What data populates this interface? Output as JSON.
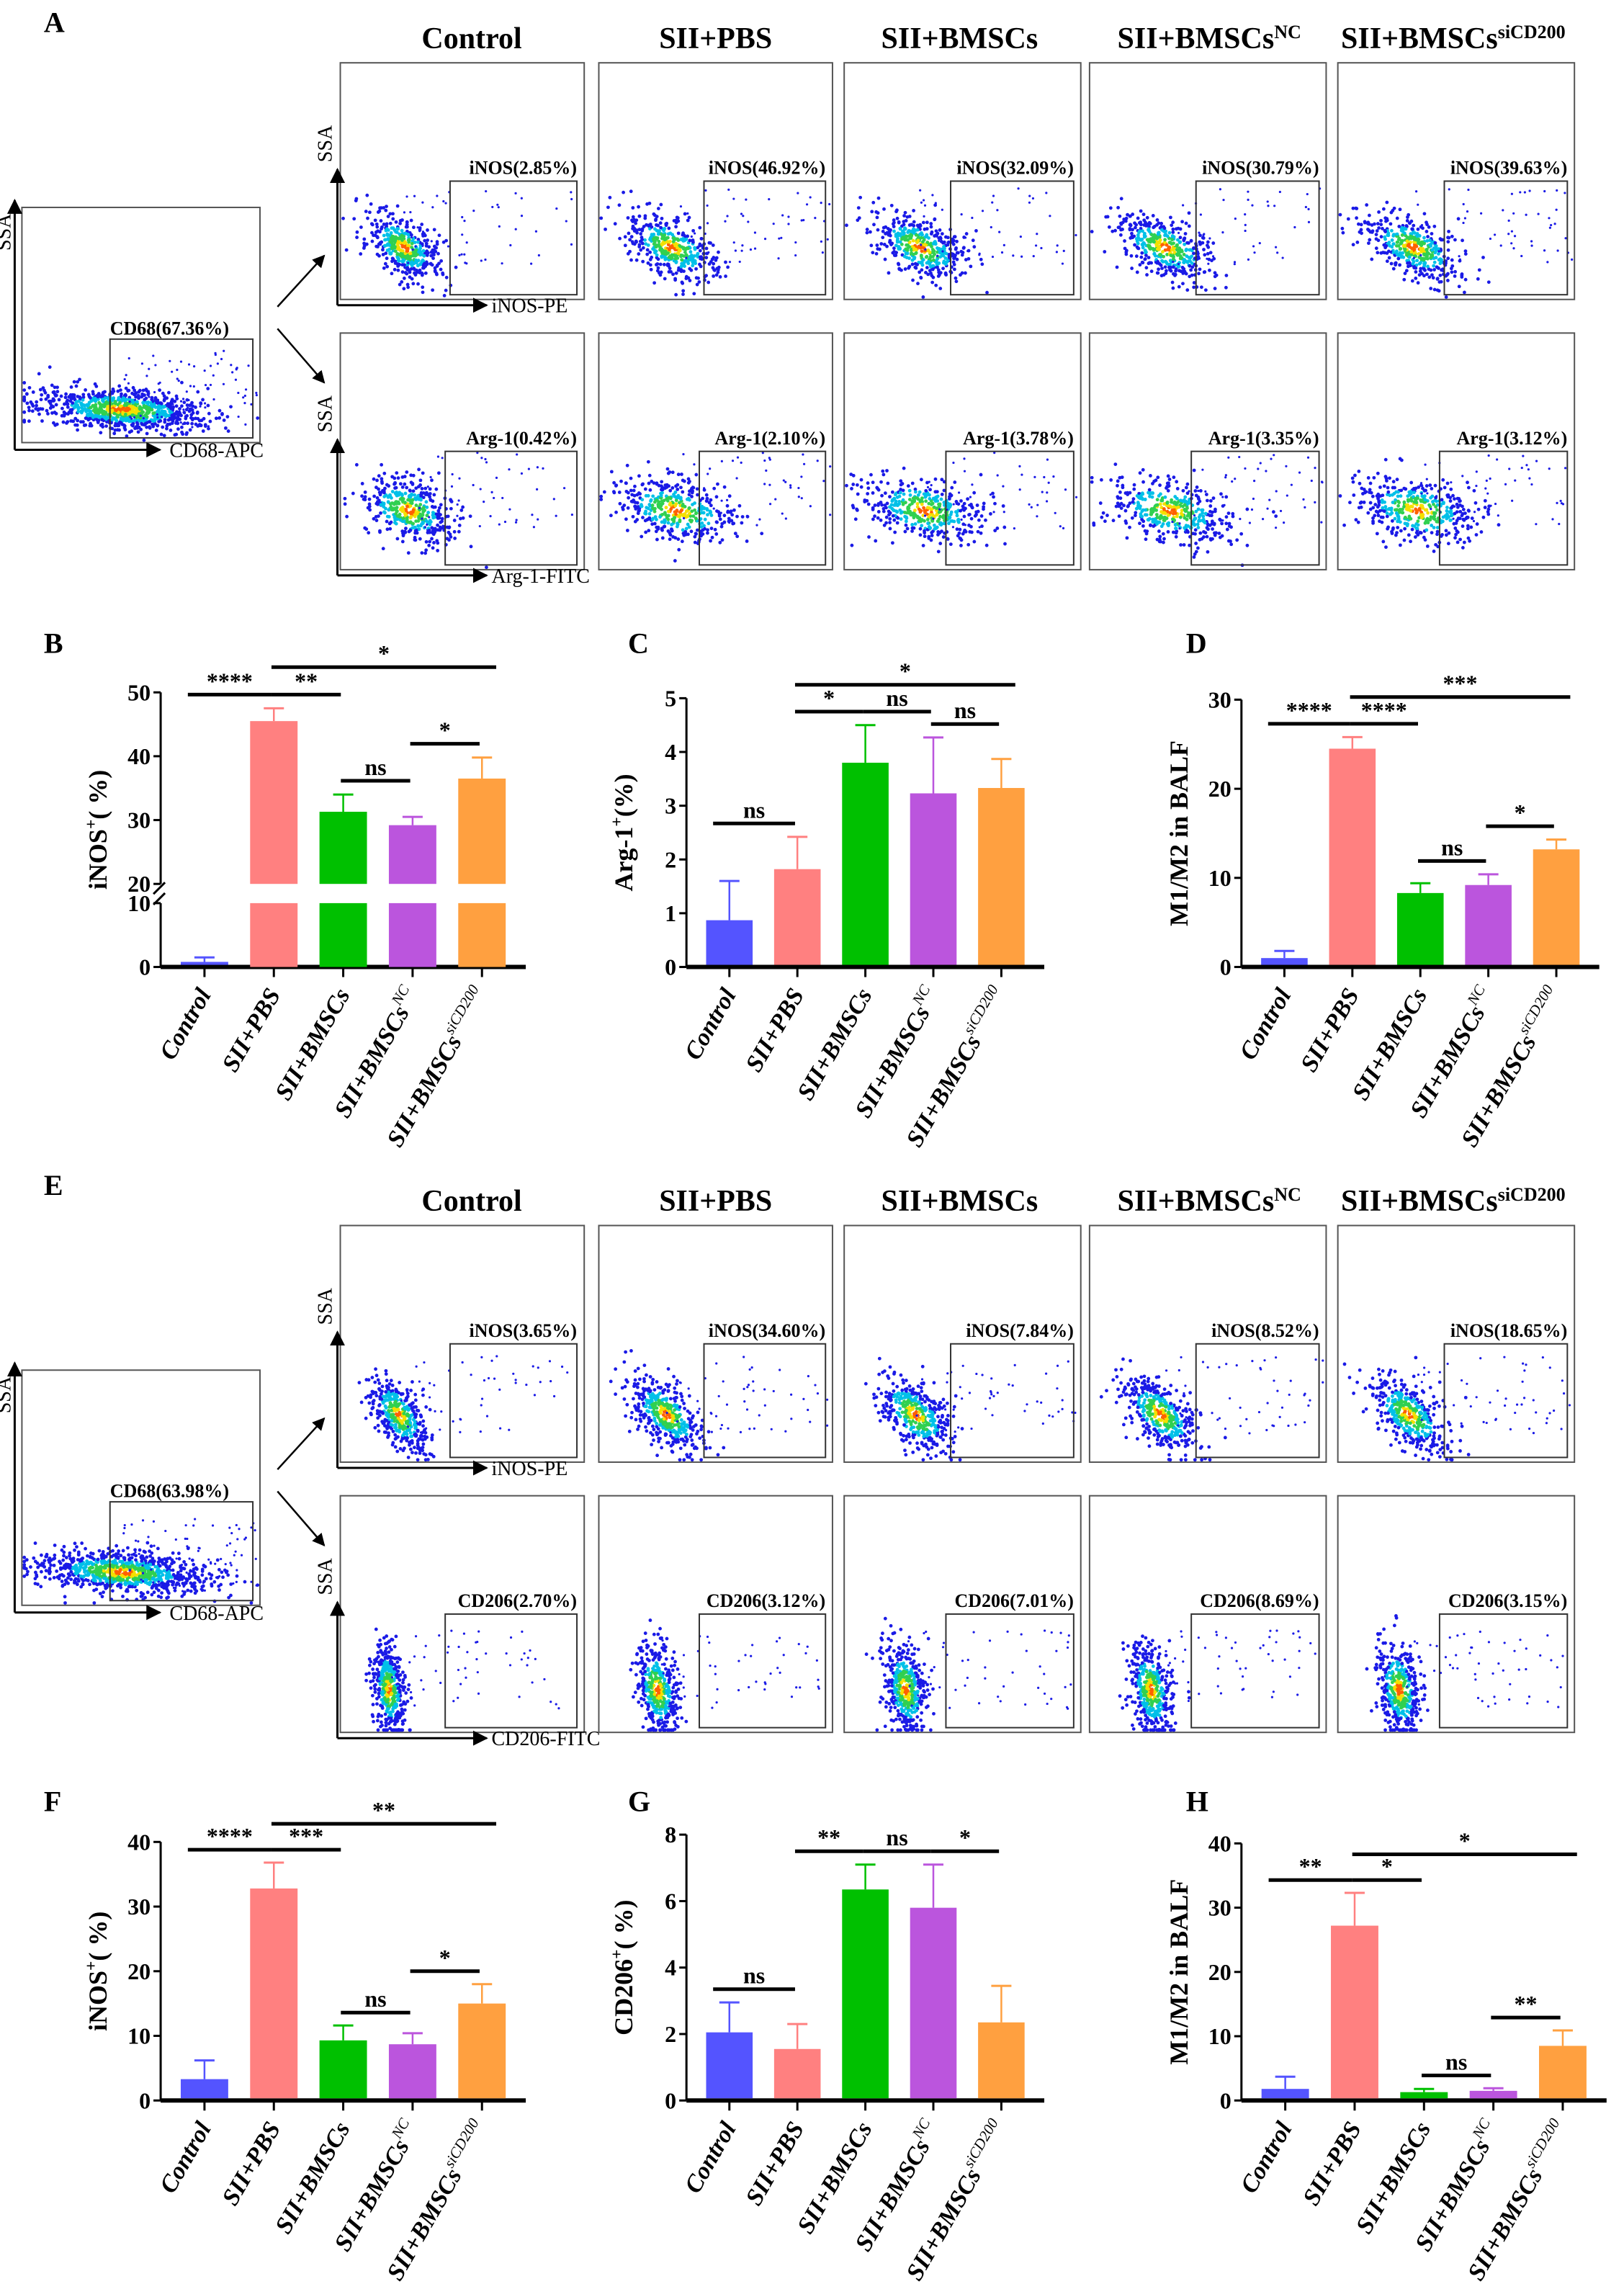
{
  "groups": [
    {
      "main": "Control",
      "sup": ""
    },
    {
      "main": "SII+PBS",
      "sup": ""
    },
    {
      "main": "SII+BMSCs",
      "sup": ""
    },
    {
      "main": "SII+BMSCs",
      "sup": "NC"
    },
    {
      "main": "SII+BMSCs",
      "sup": "siCD200"
    }
  ],
  "flow_sections": [
    {
      "letter": "A",
      "gate_panel": {
        "label": "CD68(67.36%)",
        "x_axis": "CD68-APC",
        "y_axis": "SSA"
      },
      "rows": [
        {
          "x_axis": "iNOS-PE",
          "y_axis": "SSA",
          "gates": [
            "iNOS(2.85%)",
            "iNOS(46.92%)",
            "iNOS(32.09%)",
            "iNOS(30.79%)",
            "iNOS(39.63%)"
          ]
        },
        {
          "x_axis": "Arg-1-FITC",
          "y_axis": "SSA",
          "gates": [
            "Arg-1(0.42%)",
            "Arg-1(2.10%)",
            "Arg-1(3.78%)",
            "Arg-1(3.35%)",
            "Arg-1(3.12%)"
          ]
        }
      ]
    },
    {
      "letter": "E",
      "gate_panel": {
        "label": "CD68(63.98%)",
        "x_axis": "CD68-APC",
        "y_axis": "SSA"
      },
      "rows": [
        {
          "x_axis": "iNOS-PE",
          "y_axis": "SSA",
          "gates": [
            "iNOS(3.65%)",
            "iNOS(34.60%)",
            "iNOS(7.84%)",
            "iNOS(8.52%)",
            "iNOS(18.65%)"
          ]
        },
        {
          "x_axis": "CD206-FITC",
          "y_axis": "SSA",
          "gates": [
            "CD206(2.70%)",
            "CD206(3.12%)",
            "CD206(7.01%)",
            "CD206(8.69%)",
            "CD206(3.15%)"
          ]
        }
      ]
    }
  ],
  "colors": [
    "#5454ff",
    "#ff8080",
    "#00c000",
    "#bb55dd",
    "#ffa040"
  ],
  "chart_data": [
    {
      "letter": "B",
      "type": "bar",
      "ylabel": {
        "pre": "iNOS",
        "sup": "+",
        "post": "( %)"
      },
      "ylim": [
        0,
        50
      ],
      "yticks": [
        0,
        10,
        20,
        30,
        40,
        50
      ],
      "axis_break": [
        10,
        20
      ],
      "values": [
        0.8,
        45.5,
        31.3,
        29.2,
        36.5
      ],
      "errors": [
        0.7,
        2.0,
        2.7,
        1.3,
        3.3
      ],
      "significance": [
        {
          "from": 0,
          "to": 1,
          "label": "****"
        },
        {
          "from": 1,
          "to": 2,
          "label": "**"
        },
        {
          "from": 2,
          "to": 3,
          "label": "ns"
        },
        {
          "from": 3,
          "to": 4,
          "label": "*"
        },
        {
          "from": 1,
          "to": 4,
          "label": "*"
        }
      ]
    },
    {
      "letter": "C",
      "type": "bar",
      "ylabel": {
        "pre": "Arg-1",
        "sup": "+",
        "post": "(%)"
      },
      "ylim": [
        0,
        5
      ],
      "yticks": [
        0,
        1,
        2,
        3,
        4,
        5
      ],
      "values": [
        0.87,
        1.82,
        3.8,
        3.23,
        3.33
      ],
      "errors": [
        0.73,
        0.6,
        0.7,
        1.04,
        0.54
      ],
      "significance": [
        {
          "from": 0,
          "to": 1,
          "label": "ns"
        },
        {
          "from": 1,
          "to": 2,
          "label": "*"
        },
        {
          "from": 2,
          "to": 3,
          "label": "ns"
        },
        {
          "from": 3,
          "to": 4,
          "label": "ns"
        },
        {
          "from": 1,
          "to": 4,
          "label": "*"
        }
      ]
    },
    {
      "letter": "D",
      "type": "bar",
      "ylabel": {
        "pre": "M1/M2 in BALF",
        "sup": "",
        "post": ""
      },
      "ylim": [
        0,
        30
      ],
      "yticks": [
        0,
        10,
        20,
        30
      ],
      "values": [
        1.0,
        24.5,
        8.3,
        9.2,
        13.2
      ],
      "errors": [
        0.8,
        1.3,
        1.1,
        1.2,
        1.1
      ],
      "significance": [
        {
          "from": 0,
          "to": 1,
          "label": "****"
        },
        {
          "from": 1,
          "to": 2,
          "label": "****"
        },
        {
          "from": 2,
          "to": 3,
          "label": "ns"
        },
        {
          "from": 3,
          "to": 4,
          "label": "*"
        },
        {
          "from": 1,
          "to": 4,
          "label": "***"
        }
      ]
    },
    {
      "letter": "F",
      "type": "bar",
      "ylabel": {
        "pre": "iNOS",
        "sup": "+",
        "post": "( %)"
      },
      "ylim": [
        0,
        40
      ],
      "yticks": [
        0,
        10,
        20,
        30,
        40
      ],
      "values": [
        3.3,
        32.8,
        9.3,
        8.7,
        15.0
      ],
      "errors": [
        2.9,
        4.0,
        2.3,
        1.7,
        3.0
      ],
      "significance": [
        {
          "from": 0,
          "to": 1,
          "label": "****"
        },
        {
          "from": 1,
          "to": 2,
          "label": "***"
        },
        {
          "from": 2,
          "to": 3,
          "label": "ns"
        },
        {
          "from": 3,
          "to": 4,
          "label": "*"
        },
        {
          "from": 1,
          "to": 4,
          "label": "**"
        }
      ]
    },
    {
      "letter": "G",
      "type": "bar",
      "ylabel": {
        "pre": "CD206",
        "sup": "+",
        "post": "( %)"
      },
      "ylim": [
        0,
        8
      ],
      "yticks": [
        0,
        2,
        4,
        6,
        8
      ],
      "values": [
        2.05,
        1.55,
        6.35,
        5.8,
        2.35
      ],
      "errors": [
        0.9,
        0.75,
        0.75,
        1.3,
        1.1
      ],
      "significance": [
        {
          "from": 0,
          "to": 1,
          "label": "ns"
        },
        {
          "from": 1,
          "to": 2,
          "label": "**"
        },
        {
          "from": 2,
          "to": 3,
          "label": "ns"
        },
        {
          "from": 3,
          "to": 4,
          "label": "*"
        }
      ]
    },
    {
      "letter": "H",
      "type": "bar",
      "ylabel": {
        "pre": "M1/M2 in BALF",
        "sup": "",
        "post": ""
      },
      "ylim": [
        0,
        40
      ],
      "yticks": [
        0,
        10,
        20,
        30,
        40
      ],
      "values": [
        1.8,
        27.2,
        1.3,
        1.5,
        8.5
      ],
      "errors": [
        1.9,
        5.1,
        0.5,
        0.4,
        2.4
      ],
      "significance": [
        {
          "from": 0,
          "to": 1,
          "label": "**"
        },
        {
          "from": 1,
          "to": 2,
          "label": "*"
        },
        {
          "from": 2,
          "to": 3,
          "label": "ns"
        },
        {
          "from": 3,
          "to": 4,
          "label": "**"
        },
        {
          "from": 1,
          "to": 4,
          "label": "*"
        }
      ]
    }
  ]
}
